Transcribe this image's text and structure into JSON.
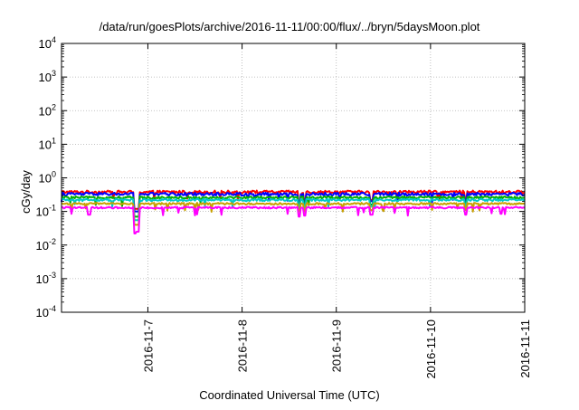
{
  "chart_data": {
    "type": "line",
    "title": "/data/run/goesPlots/archive/2016-11-11/00:00/flux/../bryn/5daysMoon.plot",
    "xlabel": "Coordinated Universal Time (UTC)",
    "ylabel": "cGy/day",
    "yscale": "log",
    "ylim": [
      0.0001,
      10000
    ],
    "xlim": [
      "2016-11-06 02:00",
      "2016-11-11 00:00"
    ],
    "grid": true,
    "y_ticks": [
      {
        "value": 0.0001,
        "base": "10",
        "exp": "-4"
      },
      {
        "value": 0.001,
        "base": "10",
        "exp": "-3"
      },
      {
        "value": 0.01,
        "base": "10",
        "exp": "-2"
      },
      {
        "value": 0.1,
        "base": "10",
        "exp": "-1"
      },
      {
        "value": 1,
        "base": "10",
        "exp": "0"
      },
      {
        "value": 10,
        "base": "10",
        "exp": "1"
      },
      {
        "value": 100,
        "base": "10",
        "exp": "2"
      },
      {
        "value": 1000,
        "base": "10",
        "exp": "3"
      },
      {
        "value": 10000,
        "base": "10",
        "exp": "4"
      }
    ],
    "x_ticks": [
      {
        "value": "2016-11-07 00:00",
        "label": "2016-11-7"
      },
      {
        "value": "2016-11-08 00:00",
        "label": "2016-11-8"
      },
      {
        "value": "2016-11-09 00:00",
        "label": "2016-11-9"
      },
      {
        "value": "2016-11-10 00:00",
        "label": "2016-11-10"
      },
      {
        "value": "2016-11-11 00:00",
        "label": "2016-11-11"
      }
    ],
    "series_style": {
      "line_colors": [
        "#ff0000",
        "#0000ff",
        "#00b000",
        "#00c8c8",
        "#c8a000",
        "#ff00ff"
      ],
      "line_width": 2
    },
    "series": [
      {
        "color": "#ff0000",
        "baseline": 0.38,
        "noise": 0.1,
        "dips": [
          [
            "2016-11-06 20:40",
            0.12
          ],
          [
            "2016-11-06 21:20",
            0.12
          ],
          [
            "2016-11-08 14:30",
            0.19
          ],
          [
            "2016-11-08 16:00",
            0.2
          ],
          [
            "2016-11-09 09:00",
            0.22
          ],
          [
            "2016-11-10 09:00",
            0.22
          ]
        ]
      },
      {
        "color": "#0000ff",
        "baseline": 0.33,
        "noise": 0.1,
        "dips": [
          [
            "2016-11-06 20:40",
            0.1
          ],
          [
            "2016-11-06 21:20",
            0.1
          ],
          [
            "2016-11-08 14:30",
            0.17
          ],
          [
            "2016-11-08 16:00",
            0.18
          ],
          [
            "2016-11-09 09:00",
            0.2
          ],
          [
            "2016-11-10 09:00",
            0.2
          ]
        ]
      },
      {
        "color": "#00b000",
        "baseline": 0.26,
        "noise": 0.08,
        "dips": [
          [
            "2016-11-06 20:40",
            0.07
          ],
          [
            "2016-11-06 21:20",
            0.07
          ],
          [
            "2016-11-08 14:30",
            0.14
          ],
          [
            "2016-11-08 16:00",
            0.15
          ],
          [
            "2016-11-09 09:00",
            0.16
          ],
          [
            "2016-11-10 09:00",
            0.16
          ]
        ]
      },
      {
        "color": "#00c8c8",
        "baseline": 0.22,
        "noise": 0.08,
        "dips": [
          [
            "2016-11-06 20:40",
            0.055
          ],
          [
            "2016-11-06 21:20",
            0.055
          ],
          [
            "2016-11-08 14:30",
            0.12
          ],
          [
            "2016-11-08 16:00",
            0.13
          ],
          [
            "2016-11-09 09:00",
            0.14
          ],
          [
            "2016-11-10 09:00",
            0.14
          ]
        ]
      },
      {
        "color": "#c8a000",
        "baseline": 0.17,
        "noise": 0.06,
        "dips": [
          [
            "2016-11-06 20:40",
            0.04
          ],
          [
            "2016-11-06 21:20",
            0.04
          ],
          [
            "2016-11-08 14:30",
            0.1
          ],
          [
            "2016-11-08 16:00",
            0.1
          ],
          [
            "2016-11-09 09:00",
            0.11
          ],
          [
            "2016-11-10 09:00",
            0.11
          ]
        ]
      },
      {
        "color": "#ff00ff",
        "baseline": 0.13,
        "noise": 0.06,
        "dips": [
          [
            "2016-11-06 20:40",
            0.022
          ],
          [
            "2016-11-06 21:20",
            0.025
          ],
          [
            "2016-11-08 14:30",
            0.07
          ],
          [
            "2016-11-08 16:00",
            0.075
          ],
          [
            "2016-11-09 09:00",
            0.08
          ],
          [
            "2016-11-10 09:00",
            0.08
          ],
          [
            "2016-11-06 09:00",
            0.08
          ],
          [
            "2016-11-10 18:00",
            0.085
          ]
        ]
      }
    ]
  }
}
